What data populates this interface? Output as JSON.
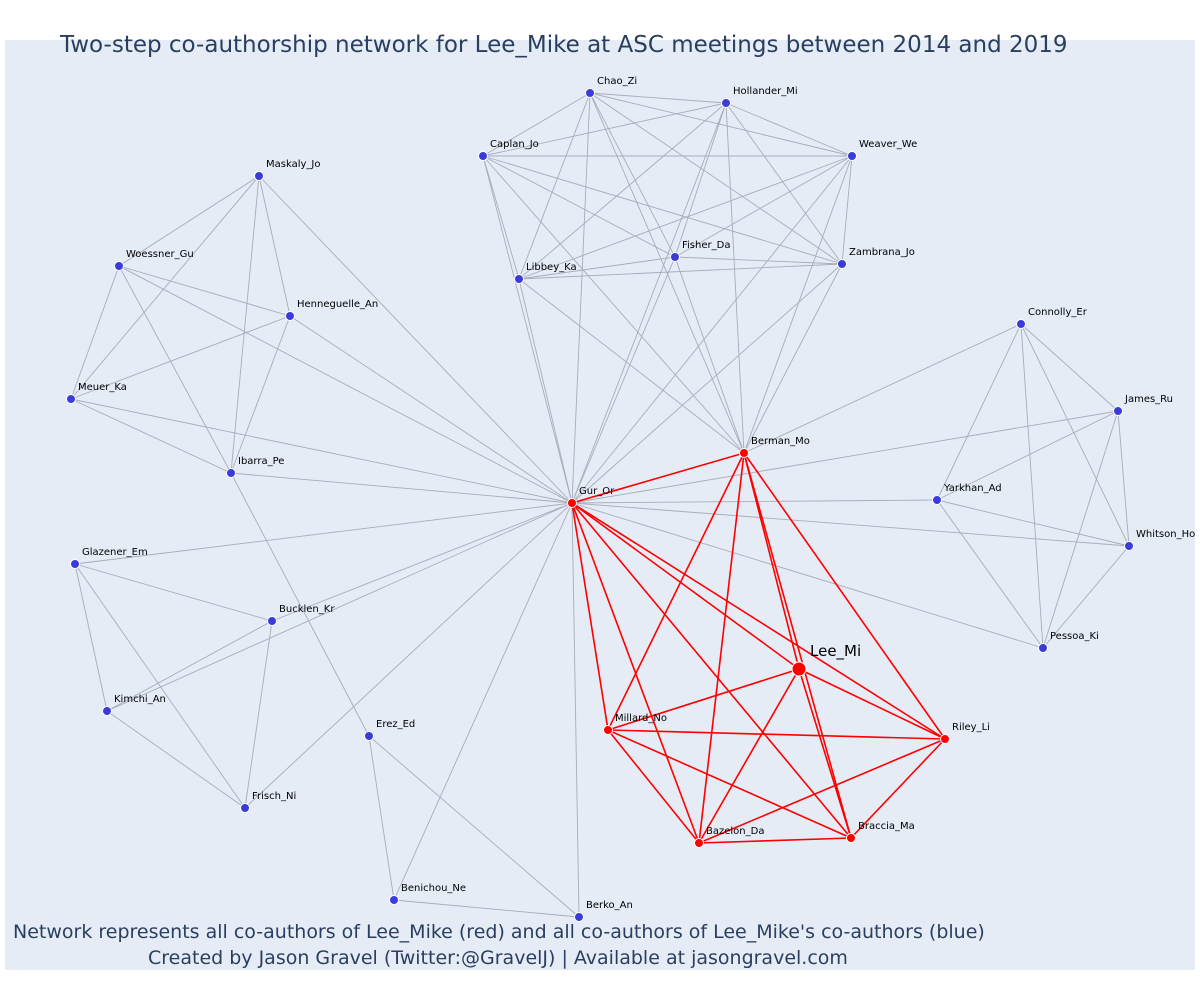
{
  "title": "Two-step co-authorship network for Lee_Mike at ASC meetings between 2014 and 2019",
  "caption_line1": "Network represents all co-authors of Lee_Mike (red) and all co-authors of Lee_Mike's co-authors (blue)",
  "caption_line2": "Created by Jason Gravel (Twitter:@GravelJ) | Available at jasongravel.com",
  "colors": {
    "background": "#e5ecf6",
    "coauthor": "#ff0000",
    "second_step": "#3b3bdb",
    "edge_gray": "#a9acb9",
    "text": "#2a3f5f"
  },
  "focus": "Lee_Mi",
  "nodes": [
    {
      "id": "Lee_Mi",
      "group": "focus"
    },
    {
      "id": "Gur_Or",
      "group": "coauthor"
    },
    {
      "id": "Berman_Mo",
      "group": "coauthor"
    },
    {
      "id": "Millard_No",
      "group": "coauthor"
    },
    {
      "id": "Riley_Li",
      "group": "coauthor"
    },
    {
      "id": "Bazelon_Da",
      "group": "coauthor"
    },
    {
      "id": "Braccia_Ma",
      "group": "coauthor"
    },
    {
      "id": "Chao_Zi",
      "group": "second"
    },
    {
      "id": "Hollander_Mi",
      "group": "second"
    },
    {
      "id": "Caplan_Jo",
      "group": "second"
    },
    {
      "id": "Weaver_We",
      "group": "second"
    },
    {
      "id": "Fisher_Da",
      "group": "second"
    },
    {
      "id": "Zambrana_Jo",
      "group": "second"
    },
    {
      "id": "Libbey_Ka",
      "group": "second"
    },
    {
      "id": "Maskaly_Jo",
      "group": "second"
    },
    {
      "id": "Woessner_Gu",
      "group": "second"
    },
    {
      "id": "Henneguelle_An",
      "group": "second"
    },
    {
      "id": "Meuer_Ka",
      "group": "second"
    },
    {
      "id": "Ibarra_Pe",
      "group": "second"
    },
    {
      "id": "Glazener_Em",
      "group": "second"
    },
    {
      "id": "Bucklen_Kr",
      "group": "second"
    },
    {
      "id": "Kimchi_An",
      "group": "second"
    },
    {
      "id": "Frisch_Ni",
      "group": "second"
    },
    {
      "id": "Erez_Ed",
      "group": "second"
    },
    {
      "id": "Benichou_Ne",
      "group": "second"
    },
    {
      "id": "Berko_An",
      "group": "second"
    },
    {
      "id": "Connolly_Er",
      "group": "second"
    },
    {
      "id": "James_Ru",
      "group": "second"
    },
    {
      "id": "Yarkhan_Ad",
      "group": "second"
    },
    {
      "id": "Whitson_Ho",
      "group": "second"
    },
    {
      "id": "Pessoa_Ki",
      "group": "second"
    }
  ],
  "edges": [
    [
      "Lee_Mi",
      "Gur_Or"
    ],
    [
      "Lee_Mi",
      "Berman_Mo"
    ],
    [
      "Lee_Mi",
      "Millard_No"
    ],
    [
      "Lee_Mi",
      "Riley_Li"
    ],
    [
      "Lee_Mi",
      "Bazelon_Da"
    ],
    [
      "Lee_Mi",
      "Braccia_Ma"
    ],
    [
      "Gur_Or",
      "Berman_Mo"
    ],
    [
      "Gur_Or",
      "Millard_No"
    ],
    [
      "Gur_Or",
      "Riley_Li"
    ],
    [
      "Gur_Or",
      "Bazelon_Da"
    ],
    [
      "Gur_Or",
      "Braccia_Ma"
    ],
    [
      "Berman_Mo",
      "Millard_No"
    ],
    [
      "Berman_Mo",
      "Riley_Li"
    ],
    [
      "Berman_Mo",
      "Bazelon_Da"
    ],
    [
      "Berman_Mo",
      "Braccia_Ma"
    ],
    [
      "Millard_No",
      "Riley_Li"
    ],
    [
      "Millard_No",
      "Bazelon_Da"
    ],
    [
      "Millard_No",
      "Braccia_Ma"
    ],
    [
      "Riley_Li",
      "Bazelon_Da"
    ],
    [
      "Riley_Li",
      "Braccia_Ma"
    ],
    [
      "Bazelon_Da",
      "Braccia_Ma"
    ],
    [
      "Chao_Zi",
      "Hollander_Mi"
    ],
    [
      "Chao_Zi",
      "Caplan_Jo"
    ],
    [
      "Chao_Zi",
      "Weaver_We"
    ],
    [
      "Chao_Zi",
      "Fisher_Da"
    ],
    [
      "Chao_Zi",
      "Zambrana_Jo"
    ],
    [
      "Chao_Zi",
      "Libbey_Ka"
    ],
    [
      "Hollander_Mi",
      "Caplan_Jo"
    ],
    [
      "Hollander_Mi",
      "Weaver_We"
    ],
    [
      "Hollander_Mi",
      "Fisher_Da"
    ],
    [
      "Hollander_Mi",
      "Zambrana_Jo"
    ],
    [
      "Hollander_Mi",
      "Libbey_Ka"
    ],
    [
      "Caplan_Jo",
      "Weaver_We"
    ],
    [
      "Caplan_Jo",
      "Fisher_Da"
    ],
    [
      "Caplan_Jo",
      "Zambrana_Jo"
    ],
    [
      "Caplan_Jo",
      "Libbey_Ka"
    ],
    [
      "Weaver_We",
      "Fisher_Da"
    ],
    [
      "Weaver_We",
      "Zambrana_Jo"
    ],
    [
      "Weaver_We",
      "Libbey_Ka"
    ],
    [
      "Fisher_Da",
      "Zambrana_Jo"
    ],
    [
      "Fisher_Da",
      "Libbey_Ka"
    ],
    [
      "Zambrana_Jo",
      "Libbey_Ka"
    ],
    [
      "Gur_Or",
      "Chao_Zi"
    ],
    [
      "Gur_Or",
      "Hollander_Mi"
    ],
    [
      "Gur_Or",
      "Caplan_Jo"
    ],
    [
      "Gur_Or",
      "Weaver_We"
    ],
    [
      "Gur_Or",
      "Fisher_Da"
    ],
    [
      "Gur_Or",
      "Zambrana_Jo"
    ],
    [
      "Gur_Or",
      "Libbey_Ka"
    ],
    [
      "Berman_Mo",
      "Chao_Zi"
    ],
    [
      "Berman_Mo",
      "Hollander_Mi"
    ],
    [
      "Berman_Mo",
      "Caplan_Jo"
    ],
    [
      "Berman_Mo",
      "Weaver_We"
    ],
    [
      "Berman_Mo",
      "Fisher_Da"
    ],
    [
      "Berman_Mo",
      "Zambrana_Jo"
    ],
    [
      "Berman_Mo",
      "Libbey_Ka"
    ],
    [
      "Maskaly_Jo",
      "Woessner_Gu"
    ],
    [
      "Maskaly_Jo",
      "Henneguelle_An"
    ],
    [
      "Maskaly_Jo",
      "Meuer_Ka"
    ],
    [
      "Maskaly_Jo",
      "Ibarra_Pe"
    ],
    [
      "Maskaly_Jo",
      "Gur_Or"
    ],
    [
      "Woessner_Gu",
      "Henneguelle_An"
    ],
    [
      "Woessner_Gu",
      "Meuer_Ka"
    ],
    [
      "Woessner_Gu",
      "Ibarra_Pe"
    ],
    [
      "Woessner_Gu",
      "Gur_Or"
    ],
    [
      "Henneguelle_An",
      "Meuer_Ka"
    ],
    [
      "Henneguelle_An",
      "Ibarra_Pe"
    ],
    [
      "Henneguelle_An",
      "Gur_Or"
    ],
    [
      "Meuer_Ka",
      "Ibarra_Pe"
    ],
    [
      "Meuer_Ka",
      "Gur_Or"
    ],
    [
      "Ibarra_Pe",
      "Gur_Or"
    ],
    [
      "Ibarra_Pe",
      "Erez_Ed"
    ],
    [
      "Glazener_Em",
      "Bucklen_Kr"
    ],
    [
      "Glazener_Em",
      "Kimchi_An"
    ],
    [
      "Glazener_Em",
      "Frisch_Ni"
    ],
    [
      "Glazener_Em",
      "Gur_Or"
    ],
    [
      "Bucklen_Kr",
      "Kimchi_An"
    ],
    [
      "Bucklen_Kr",
      "Frisch_Ni"
    ],
    [
      "Bucklen_Kr",
      "Gur_Or"
    ],
    [
      "Kimchi_An",
      "Frisch_Ni"
    ],
    [
      "Kimchi_An",
      "Gur_Or"
    ],
    [
      "Frisch_Ni",
      "Gur_Or"
    ],
    [
      "Erez_Ed",
      "Benichou_Ne"
    ],
    [
      "Erez_Ed",
      "Berko_An"
    ],
    [
      "Benichou_Ne",
      "Berko_An"
    ],
    [
      "Benichou_Ne",
      "Gur_Or"
    ],
    [
      "Berko_An",
      "Gur_Or"
    ],
    [
      "Connolly_Er",
      "James_Ru"
    ],
    [
      "Connolly_Er",
      "Yarkhan_Ad"
    ],
    [
      "Connolly_Er",
      "Whitson_Ho"
    ],
    [
      "Connolly_Er",
      "Pessoa_Ki"
    ],
    [
      "James_Ru",
      "Yarkhan_Ad"
    ],
    [
      "James_Ru",
      "Whitson_Ho"
    ],
    [
      "James_Ru",
      "Pessoa_Ki"
    ],
    [
      "Yarkhan_Ad",
      "Whitson_Ho"
    ],
    [
      "Yarkhan_Ad",
      "Pessoa_Ki"
    ],
    [
      "Whitson_Ho",
      "Pessoa_Ki"
    ],
    [
      "Gur_Or",
      "Yarkhan_Ad"
    ],
    [
      "Gur_Or",
      "Whitson_Ho"
    ],
    [
      "Gur_Or",
      "Pessoa_Ki"
    ],
    [
      "Gur_Or",
      "James_Ru"
    ],
    [
      "Berman_Mo",
      "Connolly_Er"
    ]
  ]
}
